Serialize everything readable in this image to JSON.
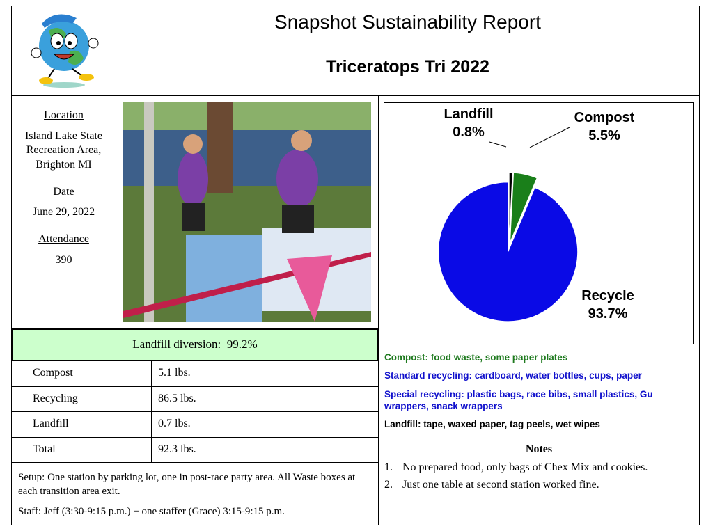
{
  "header": {
    "title": "Snapshot Sustainability Report",
    "subtitle": "Triceratops Tri 2022"
  },
  "event": {
    "location_label": "Location",
    "location": [
      "Island Lake State",
      "Recreation Area,",
      "Brighton MI"
    ],
    "date_label": "Date",
    "date": "June 29, 2022",
    "attendance_label": "Attendance",
    "attendance": 390
  },
  "diversion": {
    "label": "Landfill diversion:",
    "value": "99.2%"
  },
  "table": {
    "rows": [
      [
        "Compost",
        "5.1 lbs."
      ],
      [
        "Recycling",
        "86.5 lbs."
      ],
      [
        "Landfill",
        "0.7 lbs."
      ],
      [
        "Total",
        "92.3 lbs."
      ]
    ]
  },
  "setup": "Setup: One station by parking lot, one in post-race party area. All Waste boxes at each transition area exit.",
  "staff": "Staff: Jeff (3:30-9:15 p.m.) + one staffer (Grace) 3:15-9:15 p.m.",
  "streams": [
    {
      "text": "Compost: food waste, some paper plates",
      "color": "#1f7a1f"
    },
    {
      "text": "Standard recycling: cardboard, water bottles, cups, paper",
      "color": "#1010cc"
    },
    {
      "text": "Special recycling: plastic bags, race bibs, small plastics, Gu wrappers, snack wrappers",
      "color": "#1010cc"
    },
    {
      "text": "Landfill: tape, waxed paper, tag peels, wet wipes",
      "color": "#000000"
    }
  ],
  "notes": {
    "title": "Notes",
    "items": [
      {
        "number": "1.",
        "text": "No prepared food, only bags of Chex Mix and cookies."
      },
      {
        "number": "2.",
        "text": "Just one table at second station worked fine."
      }
    ]
  },
  "chart_data": {
    "type": "pie",
    "categories": [
      "Landfill",
      "Compost",
      "Recycle"
    ],
    "values": [
      0.8,
      5.5,
      93.7
    ],
    "value_labels": [
      "0.8%",
      "5.5%",
      "93.7%"
    ],
    "colors": [
      "#000000",
      "#1a7f1a",
      "#0a0ae6"
    ]
  }
}
